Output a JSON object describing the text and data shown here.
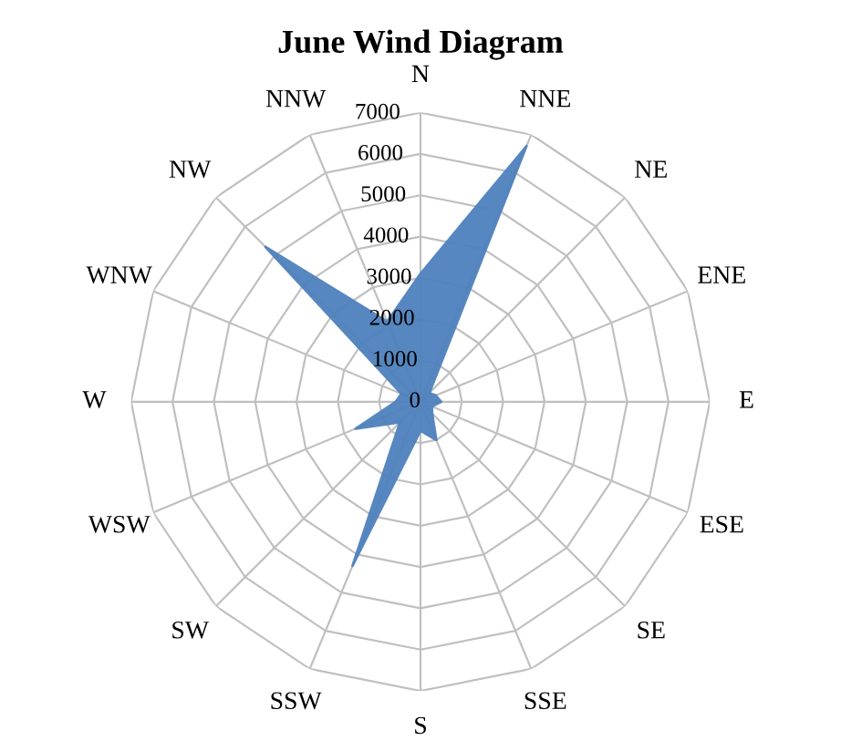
{
  "chart_data": {
    "type": "radar",
    "title": "June Wind Diagram",
    "categories": [
      "N",
      "NNE",
      "NE",
      "ENE",
      "E",
      "ESE",
      "SE",
      "SSE",
      "S",
      "SSW",
      "SW",
      "WSW",
      "W",
      "WNW",
      "NW",
      "NNW"
    ],
    "series": [
      {
        "color": "#4f81bd",
        "values": [
          3100,
          6700,
          300,
          400,
          500,
          300,
          400,
          1000,
          700,
          4300,
          700,
          1700,
          600,
          500,
          5300,
          2100
        ]
      }
    ],
    "ylim": [
      0,
      7000
    ],
    "yticks": [
      0,
      1000,
      2000,
      3000,
      4000,
      5000,
      6000,
      7000
    ],
    "grid": true
  }
}
